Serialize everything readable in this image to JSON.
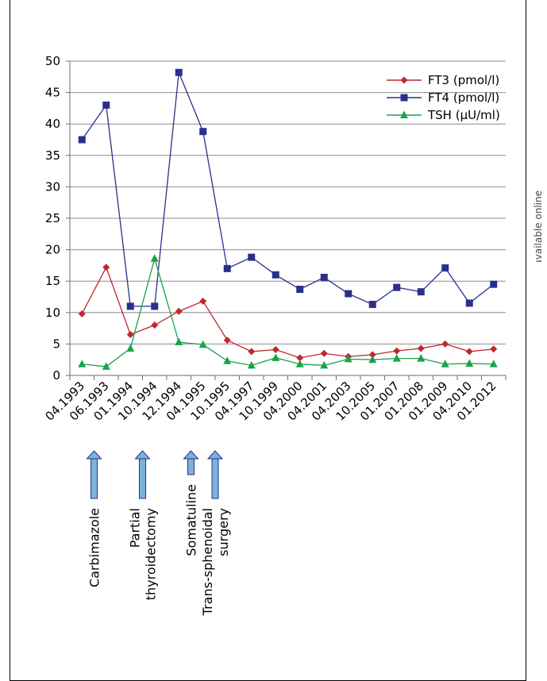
{
  "side_note": "Color version available online",
  "chart_data": {
    "type": "line",
    "categories": [
      "04.1993",
      "06.1993",
      "01.1994",
      "10.1994",
      "12.1994",
      "04.1995",
      "10.1995",
      "04.1997",
      "10.1999",
      "04.2000",
      "04.2001",
      "04.2003",
      "10.2005",
      "01.2007",
      "01.2008",
      "01.2009",
      "04.2010",
      "01.2012"
    ],
    "ylim": [
      0,
      50
    ],
    "yticks": [
      0,
      5,
      10,
      15,
      20,
      25,
      30,
      35,
      40,
      45,
      50
    ],
    "grid": true,
    "legend_position": "top-right",
    "series": [
      {
        "name": "FT3 (pmol/l)",
        "color": "#c0272d",
        "marker": "diamond",
        "values": [
          9.8,
          17.2,
          6.5,
          8.0,
          10.2,
          11.8,
          5.6,
          3.8,
          4.1,
          2.8,
          3.5,
          3.0,
          3.3,
          3.9,
          4.3,
          5.0,
          3.8,
          4.2
        ]
      },
      {
        "name": "FT4 (pmol/l)",
        "color": "#2b2f8c",
        "marker": "square",
        "values": [
          37.5,
          43.0,
          11.0,
          11.0,
          48.2,
          38.8,
          17.0,
          18.8,
          16.0,
          13.7,
          15.6,
          13.0,
          11.3,
          14.0,
          13.3,
          17.1,
          11.5,
          14.5
        ]
      },
      {
        "name": "TSH (µU/ml)",
        "color": "#1aa34a",
        "marker": "triangle",
        "values": [
          1.8,
          1.4,
          4.3,
          18.6,
          5.3,
          4.9,
          2.3,
          1.6,
          2.8,
          1.8,
          1.6,
          2.6,
          2.5,
          2.7,
          2.7,
          1.8,
          1.9,
          1.8
        ]
      }
    ],
    "annotations": [
      {
        "lines": [
          "Carbimazole"
        ],
        "category_index": 0.5
      },
      {
        "lines": [
          "Partial",
          "thyroidectomy"
        ],
        "category_index": 2.5
      },
      {
        "lines": [
          "Somatuline"
        ],
        "category_index": 4.5
      },
      {
        "lines": [
          "Trans-sphenoidal",
          "surgery"
        ],
        "category_index": 5.5
      }
    ]
  }
}
